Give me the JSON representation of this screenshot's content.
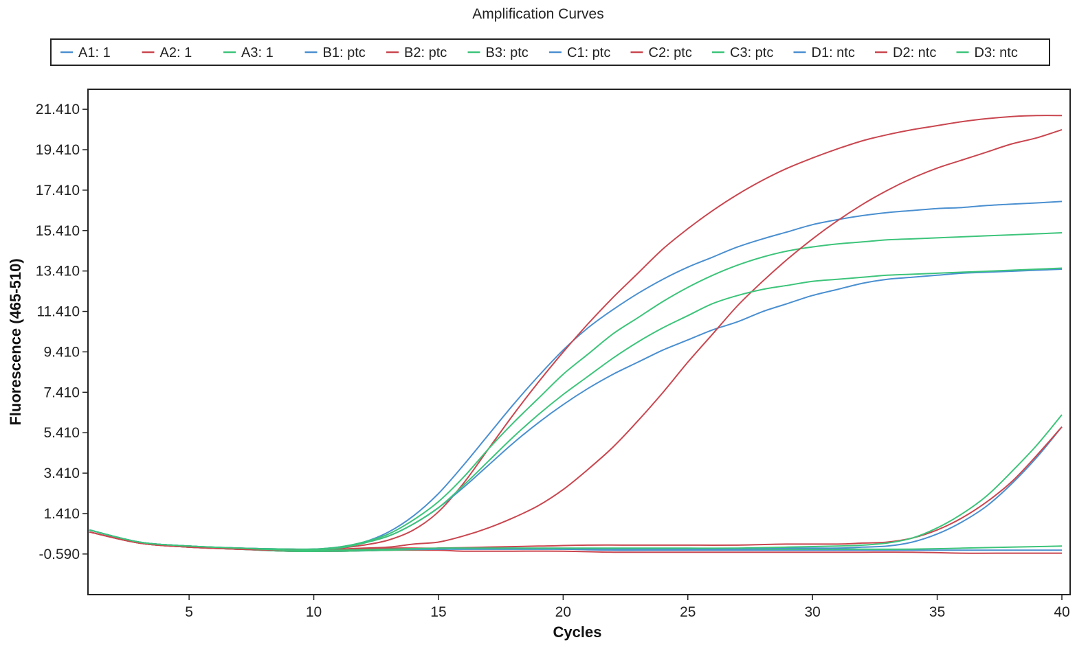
{
  "chart_data": {
    "type": "line",
    "title": "Amplification Curves",
    "xlabel": "Cycles",
    "ylabel": "Fluorescence (465-510)",
    "xlim": [
      1,
      40
    ],
    "ylim": [
      -2.6,
      22.4
    ],
    "xticks": [
      5,
      10,
      15,
      20,
      25,
      30,
      35,
      40
    ],
    "xtick_labels": [
      "5",
      "10",
      "15",
      "20",
      "25",
      "30",
      "35",
      "40"
    ],
    "yticks": [
      21.41,
      19.41,
      17.41,
      15.41,
      13.41,
      11.41,
      9.41,
      7.41,
      5.41,
      3.41,
      1.41,
      -0.59
    ],
    "ytick_labels": [
      "21.410",
      "19.410",
      "17.410",
      "15.410",
      "13.410",
      "11.410",
      "9.410",
      "7.410",
      "5.410",
      "3.410",
      "1.410",
      "-0.590"
    ],
    "grid": false,
    "legend_position": "top-center",
    "colors": {
      "blue": "#4a8fd0",
      "red": "#c9464f",
      "green": "#3cc47a"
    },
    "series": [
      {
        "name": "A1: 1",
        "color": "#4a8fd0",
        "x": [
          1,
          3,
          5,
          7,
          9,
          11,
          13,
          15,
          16,
          18,
          20,
          22,
          24,
          26,
          28,
          30,
          32,
          34,
          36,
          38,
          40
        ],
        "y": [
          0.6,
          0.0,
          -0.2,
          -0.35,
          -0.45,
          -0.45,
          -0.4,
          -0.3,
          -0.3,
          -0.3,
          -0.35,
          -0.4,
          -0.4,
          -0.4,
          -0.4,
          -0.4,
          -0.4,
          -0.4,
          -0.4,
          -0.4,
          -0.4
        ]
      },
      {
        "name": "A2: 1",
        "color": "#c9464f",
        "x": [
          1,
          3,
          5,
          7,
          9,
          11,
          13,
          15,
          16,
          18,
          20,
          22,
          24,
          26,
          28,
          30,
          32,
          34,
          36,
          38,
          40
        ],
        "y": [
          0.5,
          -0.05,
          -0.25,
          -0.35,
          -0.45,
          -0.45,
          -0.4,
          -0.4,
          -0.45,
          -0.45,
          -0.45,
          -0.5,
          -0.5,
          -0.5,
          -0.5,
          -0.5,
          -0.5,
          -0.5,
          -0.55,
          -0.55,
          -0.55
        ]
      },
      {
        "name": "A3: 1",
        "color": "#3cc47a",
        "x": [
          1,
          3,
          5,
          7,
          9,
          11,
          13,
          15,
          16,
          18,
          20,
          22,
          24,
          26,
          28,
          30,
          32,
          34,
          36,
          38,
          40
        ],
        "y": [
          0.6,
          0.0,
          -0.25,
          -0.35,
          -0.45,
          -0.45,
          -0.4,
          -0.35,
          -0.35,
          -0.35,
          -0.35,
          -0.35,
          -0.35,
          -0.35,
          -0.35,
          -0.35,
          -0.35,
          -0.35,
          -0.3,
          -0.25,
          -0.2
        ]
      },
      {
        "name": "B1: ptc",
        "color": "#4a8fd0",
        "x": [
          1,
          3,
          5,
          7,
          9,
          10,
          11,
          12,
          13,
          14,
          15,
          16,
          17,
          18,
          19,
          20,
          21,
          22,
          23,
          24,
          25,
          26,
          27,
          28,
          29,
          30,
          31,
          32,
          33,
          34,
          35,
          36,
          37,
          38,
          39,
          40
        ],
        "y": [
          0.6,
          0.0,
          -0.2,
          -0.3,
          -0.35,
          -0.35,
          -0.25,
          0.0,
          0.5,
          1.3,
          2.4,
          3.8,
          5.3,
          6.8,
          8.2,
          9.5,
          10.6,
          11.5,
          12.3,
          13.0,
          13.6,
          14.1,
          14.6,
          15.0,
          15.35,
          15.7,
          15.95,
          16.15,
          16.3,
          16.4,
          16.5,
          16.55,
          16.65,
          16.72,
          16.78,
          16.85
        ]
      },
      {
        "name": "B2: ptc",
        "color": "#c9464f",
        "x": [
          1,
          3,
          5,
          7,
          9,
          10,
          11,
          12,
          13,
          14,
          15,
          16,
          17,
          18,
          19,
          20,
          21,
          22,
          23,
          24,
          25,
          26,
          27,
          28,
          29,
          30,
          31,
          32,
          33,
          34,
          35,
          36,
          37,
          38,
          39,
          40
        ],
        "y": [
          0.5,
          -0.05,
          -0.25,
          -0.35,
          -0.4,
          -0.35,
          -0.3,
          -0.15,
          0.1,
          0.6,
          1.5,
          2.9,
          4.6,
          6.3,
          7.9,
          9.4,
          10.8,
          12.1,
          13.3,
          14.5,
          15.5,
          16.4,
          17.2,
          17.9,
          18.5,
          19.0,
          19.45,
          19.85,
          20.15,
          20.4,
          20.6,
          20.8,
          20.95,
          21.05,
          21.1,
          21.1
        ]
      },
      {
        "name": "B3: ptc",
        "color": "#3cc47a",
        "x": [
          1,
          3,
          5,
          7,
          9,
          10,
          11,
          12,
          13,
          14,
          15,
          16,
          17,
          18,
          19,
          20,
          21,
          22,
          23,
          24,
          25,
          26,
          27,
          28,
          29,
          30,
          31,
          32,
          33,
          34,
          35,
          36,
          37,
          38,
          39,
          40
        ],
        "y": [
          0.6,
          0.0,
          -0.2,
          -0.3,
          -0.35,
          -0.35,
          -0.25,
          0.0,
          0.4,
          1.1,
          2.0,
          3.2,
          4.6,
          5.9,
          7.1,
          8.3,
          9.3,
          10.3,
          11.1,
          11.9,
          12.6,
          13.2,
          13.7,
          14.1,
          14.4,
          14.6,
          14.75,
          14.85,
          14.95,
          15.0,
          15.05,
          15.1,
          15.15,
          15.2,
          15.25,
          15.3
        ]
      },
      {
        "name": "C1: ptc",
        "color": "#4a8fd0",
        "x": [
          1,
          3,
          5,
          7,
          9,
          10,
          11,
          12,
          13,
          14,
          15,
          16,
          17,
          18,
          19,
          20,
          21,
          22,
          23,
          24,
          25,
          26,
          27,
          28,
          29,
          30,
          31,
          32,
          33,
          34,
          35,
          36,
          37,
          38,
          39,
          40
        ],
        "y": [
          0.6,
          0.0,
          -0.2,
          -0.3,
          -0.35,
          -0.35,
          -0.3,
          -0.05,
          0.3,
          0.9,
          1.7,
          2.7,
          3.8,
          4.9,
          5.9,
          6.8,
          7.6,
          8.3,
          8.9,
          9.5,
          10.0,
          10.5,
          10.9,
          11.4,
          11.8,
          12.2,
          12.5,
          12.8,
          13.0,
          13.1,
          13.2,
          13.3,
          13.35,
          13.4,
          13.45,
          13.5
        ]
      },
      {
        "name": "C2: ptc",
        "color": "#c9464f",
        "x": [
          1,
          3,
          5,
          7,
          9,
          10,
          11,
          12,
          13,
          14,
          15,
          16,
          17,
          18,
          19,
          20,
          21,
          22,
          23,
          24,
          25,
          26,
          27,
          28,
          29,
          30,
          31,
          32,
          33,
          34,
          35,
          36,
          37,
          38,
          39,
          40
        ],
        "y": [
          0.5,
          -0.05,
          -0.25,
          -0.35,
          -0.4,
          -0.4,
          -0.35,
          -0.3,
          -0.25,
          -0.1,
          0.0,
          0.3,
          0.7,
          1.2,
          1.8,
          2.6,
          3.6,
          4.7,
          6.0,
          7.4,
          8.9,
          10.3,
          11.7,
          12.9,
          14.0,
          15.0,
          15.9,
          16.7,
          17.4,
          18.0,
          18.5,
          18.9,
          19.3,
          19.7,
          20.0,
          20.4
        ]
      },
      {
        "name": "C3: ptc",
        "color": "#3cc47a",
        "x": [
          1,
          3,
          5,
          7,
          9,
          10,
          11,
          12,
          13,
          14,
          15,
          16,
          17,
          18,
          19,
          20,
          21,
          22,
          23,
          24,
          25,
          26,
          27,
          28,
          29,
          30,
          31,
          32,
          33,
          34,
          35,
          36,
          37,
          38,
          39,
          40
        ],
        "y": [
          0.6,
          0.0,
          -0.2,
          -0.3,
          -0.35,
          -0.35,
          -0.3,
          -0.05,
          0.3,
          0.9,
          1.7,
          2.8,
          4.0,
          5.2,
          6.3,
          7.3,
          8.2,
          9.1,
          9.9,
          10.6,
          11.2,
          11.8,
          12.2,
          12.5,
          12.7,
          12.9,
          13.0,
          13.1,
          13.2,
          13.25,
          13.3,
          13.35,
          13.4,
          13.45,
          13.5,
          13.55
        ]
      },
      {
        "name": "D1: ntc",
        "color": "#4a8fd0",
        "x": [
          1,
          3,
          5,
          7,
          9,
          11,
          13,
          15,
          17,
          19,
          21,
          23,
          25,
          27,
          29,
          31,
          32,
          33,
          34,
          35,
          36,
          37,
          38,
          39,
          40
        ],
        "y": [
          0.6,
          0.0,
          -0.2,
          -0.3,
          -0.4,
          -0.4,
          -0.35,
          -0.35,
          -0.35,
          -0.35,
          -0.35,
          -0.35,
          -0.35,
          -0.35,
          -0.3,
          -0.3,
          -0.25,
          -0.2,
          0.0,
          0.4,
          1.0,
          1.8,
          2.9,
          4.2,
          5.7
        ]
      },
      {
        "name": "D2: ntc",
        "color": "#c9464f",
        "x": [
          1,
          3,
          5,
          7,
          9,
          11,
          13,
          15,
          17,
          19,
          21,
          23,
          25,
          27,
          29,
          31,
          32,
          33,
          34,
          35,
          36,
          37,
          38,
          39,
          40
        ],
        "y": [
          0.5,
          -0.05,
          -0.25,
          -0.35,
          -0.4,
          -0.4,
          -0.3,
          -0.3,
          -0.25,
          -0.2,
          -0.15,
          -0.15,
          -0.15,
          -0.15,
          -0.1,
          -0.1,
          -0.05,
          0.0,
          0.2,
          0.6,
          1.2,
          2.0,
          3.0,
          4.3,
          5.7
        ]
      },
      {
        "name": "D3: ntc",
        "color": "#3cc47a",
        "x": [
          1,
          3,
          5,
          7,
          9,
          11,
          13,
          15,
          17,
          19,
          21,
          23,
          25,
          27,
          29,
          31,
          32,
          33,
          34,
          35,
          36,
          37,
          38,
          39,
          40
        ],
        "y": [
          0.6,
          0.0,
          -0.2,
          -0.3,
          -0.4,
          -0.4,
          -0.35,
          -0.3,
          -0.3,
          -0.3,
          -0.3,
          -0.3,
          -0.3,
          -0.3,
          -0.25,
          -0.2,
          -0.15,
          -0.05,
          0.2,
          0.7,
          1.4,
          2.3,
          3.5,
          4.8,
          6.3
        ]
      }
    ]
  }
}
